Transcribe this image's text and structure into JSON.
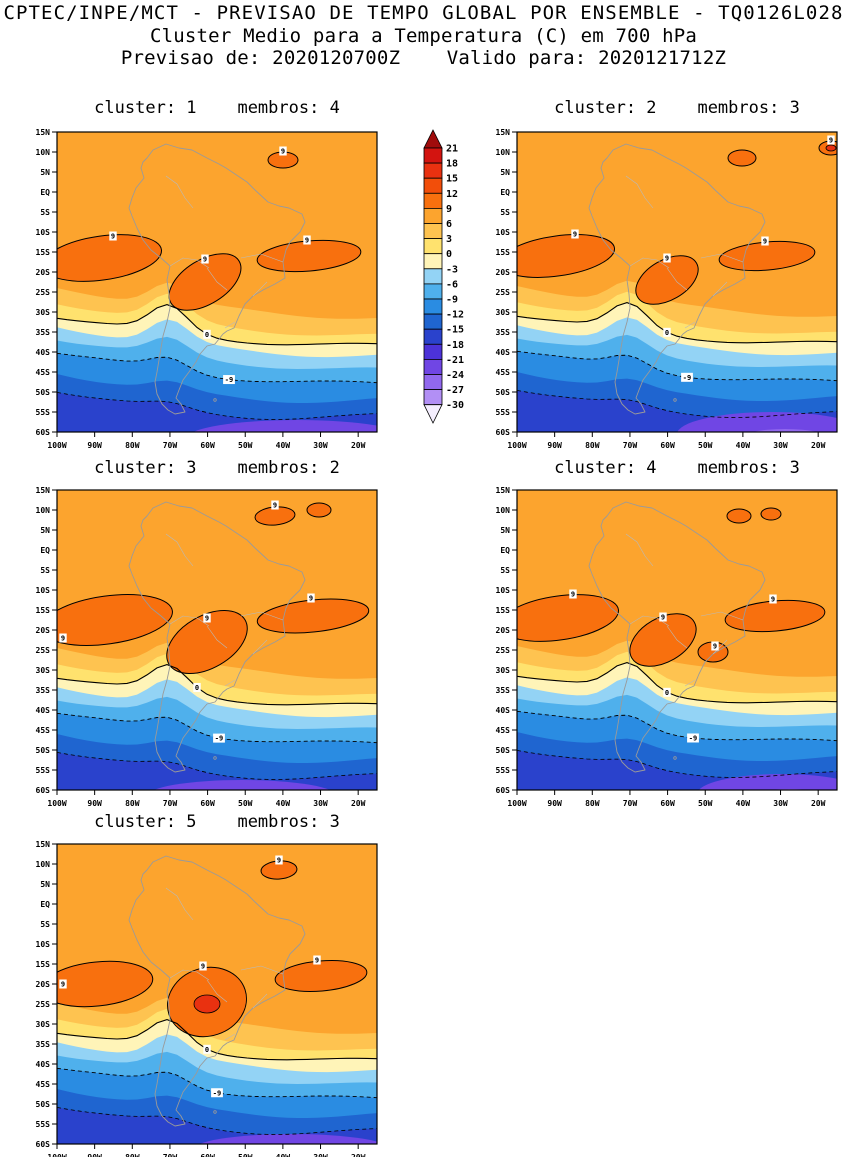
{
  "header": {
    "line1": "CPTEC/INPE/MCT - PREVISAO DE TEMPO GLOBAL POR ENSEMBLE - TQ0126L028",
    "line2": "Cluster Medio para a Temperatura (C) em 700 hPa",
    "line3": "Previsao de: 2020120700Z    Valido para: 2020121712Z"
  },
  "panels": [
    {
      "cluster": "1",
      "membros": "4",
      "title": "cluster: 1    membros: 4"
    },
    {
      "cluster": "2",
      "membros": "3",
      "title": "cluster: 2    membros: 3"
    },
    {
      "cluster": "3",
      "membros": "2",
      "title": "cluster: 3    membros: 2"
    },
    {
      "cluster": "4",
      "membros": "3",
      "title": "cluster: 4    membros: 3"
    },
    {
      "cluster": "5",
      "membros": "3",
      "title": "cluster: 5    membros: 3"
    }
  ],
  "axes": {
    "lat_labels": [
      "15N",
      "10N",
      "5N",
      "EQ",
      "5S",
      "10S",
      "15S",
      "20S",
      "25S",
      "30S",
      "35S",
      "40S",
      "45S",
      "50S",
      "55S",
      "60S"
    ],
    "lon_labels": [
      "100W",
      "90W",
      "80W",
      "70W",
      "60W",
      "50W",
      "40W",
      "30W",
      "20W"
    ]
  },
  "colorbar": {
    "tick_labels": [
      "21",
      "18",
      "15",
      "12",
      "9",
      "6",
      "3",
      "0",
      "-3",
      "-6",
      "-9",
      "-12",
      "-15",
      "-18",
      "-21",
      "-24",
      "-27",
      "-30"
    ],
    "colors": [
      "#a00c0c",
      "#d31410",
      "#e93110",
      "#f24e0a",
      "#f8700e",
      "#fca42e",
      "#fec350",
      "#ffe26e",
      "#fff4b8",
      "#93d3f5",
      "#4fb0ec",
      "#2a8ce2",
      "#1f65d0",
      "#2a42cc",
      "#4c32d8",
      "#7046e4",
      "#9168ee",
      "#b28ff5",
      "#f4eefe"
    ]
  },
  "contour_labels": {
    "warm": "9",
    "zero": "0",
    "cold": "-9"
  },
  "chart_data": {
    "type": "filled-contour-map",
    "title": "CPTEC/INPE/MCT - PREVISAO DE TEMPO GLOBAL POR ENSEMBLE - TQ0126L028",
    "subtitle": "Cluster Medio para a Temperatura (C) em 700 hPa",
    "variable": "Temperatura (C) em 700 hPa",
    "forecast_init": "2020120700Z",
    "forecast_valid": "2020121712Z",
    "model": "TQ0126L028",
    "layout": "5 cluster-mean panels in 2 columns plus shared vertical colorbar",
    "lon_range": [
      "100W",
      "15W"
    ],
    "lat_range": [
      "60S",
      "15N"
    ],
    "contour_interval_c": 3,
    "colorbar_ticks_c": [
      21,
      18,
      15,
      12,
      9,
      6,
      3,
      0,
      -3,
      -6,
      -9,
      -12,
      -15,
      -18,
      -21,
      -24,
      -27,
      -30
    ],
    "labeled_line_contours_c": [
      9,
      0,
      -9
    ],
    "panels": [
      {
        "cluster": 1,
        "membros": 4,
        "summary": "6-12C orange over tropics; 9C warm cores near 10S-25S (west, central, east) and a small one near 40W 8N; 0C line ~32-37S; dashed -9C ~43-47S; below -15C with purple (<-21C) patches near 55-60S"
      },
      {
        "cluster": 2,
        "membros": 3,
        "summary": "Similar pattern; extra small 9C core at far NE corner; larger purple cold pool (<-24C) in the SE corner"
      },
      {
        "cluster": 3,
        "membros": 2,
        "summary": "Broadest 9C warm cores stretching from 100W to 20W near 10S-25S; two small 9C cores near 8N; cold pool centered south-central"
      },
      {
        "cluster": 4,
        "membros": 3,
        "summary": "9C cores split into west, central and small 50W blobs; two tiny 9C cores near 9N; purple cold pool in SE"
      },
      {
        "cluster": 5,
        "membros": 3,
        "summary": "Strong central warm core 10S-30S with >12C spot near 62W 20S; 9C cores at NE (10N) and at the western edge 15-25S"
      }
    ]
  }
}
